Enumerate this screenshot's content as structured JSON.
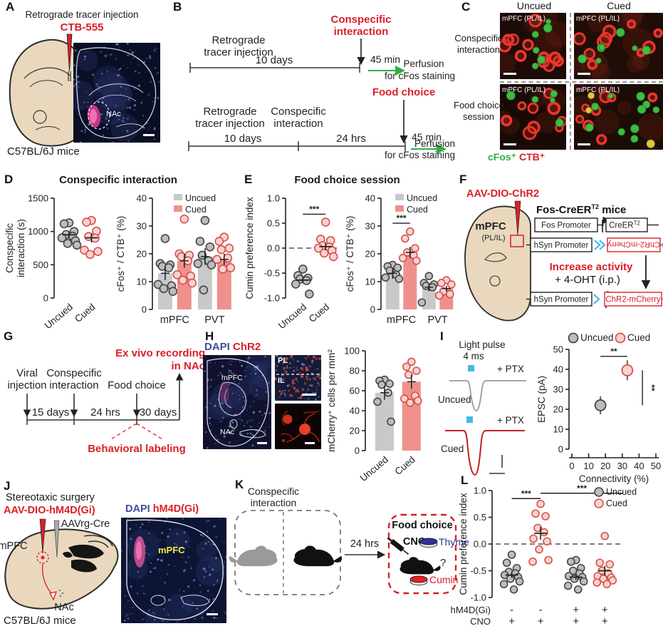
{
  "colors": {
    "red": "#d92027",
    "pink_bar": "#f0908a",
    "gray_bar": "#c9c9c9",
    "gray_dot": "#bdbdbd",
    "gray_dot_stroke": "#454545",
    "red_dot_fill": "#f8d2cf",
    "red_dot_stroke": "#d4504b",
    "green": "#2fae4a",
    "blue_text": "#3b4fa0",
    "cyan": "#45b7e6",
    "thyme_blue": "#2f2f9e",
    "beige": "#e9d8bd"
  },
  "panels": {
    "A": {
      "label": "A",
      "title": "Retrograde tracer injection",
      "tracer": "CTB-555",
      "region": "NAc",
      "mouse_line": "C57BL/6J mice"
    },
    "B": {
      "label": "B",
      "top": {
        "pre1": "Retrograde",
        "pre2": "tracer injection",
        "dur": "10 days",
        "ev1": "Conspecific",
        "ev2": "interaction",
        "delay": "45 min",
        "out1": "Perfusion",
        "out2": "for cFos staining"
      },
      "bot": {
        "pre1": "Retrograde",
        "pre2": "tracer injection",
        "mid1": "Conspecific",
        "mid2": "interaction",
        "dur1": "10 days",
        "dur2": "24 hrs",
        "ev": "Food choice",
        "delay": "45 min",
        "out1": "Perfusion",
        "out2": "for cFos staining"
      }
    },
    "C": {
      "label": "C",
      "col1": "Uncued",
      "col2": "Cued",
      "row1a": "Conspecific",
      "row1b": "interaction",
      "row2a": "Food choice",
      "row2b": "session",
      "img_label": "mPFC (PL/IL)",
      "leg_green": "cFos⁺",
      "leg_red": "CTB⁺"
    },
    "D": {
      "label": "D",
      "title": "Conspecific interaction"
    },
    "E": {
      "label": "E",
      "title": "Food choice session"
    },
    "F": {
      "label": "F",
      "virus": "AAV-DIO-ChR2",
      "region": "mPFC",
      "region_sub": "(PL/IL)",
      "mice": "Fos-CreER",
      "mice_sup": "T2",
      "mice_tail": " mice",
      "fos_prom": "Fos Promoter",
      "creer": "CreER",
      "creer_sup": "T2",
      "hsyn": "hSyn Promoter",
      "chr2_inv": "ChR2-mCherry",
      "increase": "Increase activity",
      "oht": "+ 4-OHT (i.p.)",
      "hsyn2": "hSyn Promoter",
      "chr2": "ChR2-mCherry"
    },
    "G": {
      "label": "G",
      "s1a": "Viral",
      "s1b": "injection",
      "s2a": "Conspecific",
      "s2b": "interaction",
      "s3": "Food choice",
      "d1": "15 days",
      "d2": "24 hrs",
      "d3": "30 days",
      "out1": "Ex vivo recording",
      "out2": "in NAc",
      "note": "Behavioral labeling"
    },
    "H": {
      "label": "H",
      "stain_blue": "DAPI",
      "stain_red": "ChR2",
      "mpfc": "mPFC",
      "nac": "NAc",
      "pl": "PL",
      "il": "IL"
    },
    "I": {
      "label": "I",
      "lp1": "Light pulse",
      "lp2": "4 ms",
      "ptx": "+ PTX",
      "t1": "Uncued",
      "t2": "Cued"
    },
    "J": {
      "label": "J",
      "surgery": "Stereotaxic surgery",
      "virus": "AAV-DIO-hM4D(Gi)",
      "virus2": "AAVrg-Cre",
      "mpfc": "mPFC",
      "nac": "NAc",
      "mouse_line": "C57BL/6J mice",
      "stain_blue": "DAPI",
      "stain_red": "hM4D(Gi)",
      "img_region": "mPFC"
    },
    "K": {
      "label": "K",
      "b1a": "Conspecific",
      "b1b": "interaction",
      "delay": "24 hrs",
      "b2_title": "Food choice",
      "cno": "CNO",
      "q": "?",
      "thyme": "Thyme",
      "cumin": "Cumin"
    },
    "L": {
      "label": "L"
    }
  },
  "chart_data": [
    {
      "id": "D-left",
      "type": "strip",
      "ylabel_lines": [
        "Conspecific",
        "interaction (s)"
      ],
      "ylim": [
        0,
        1500
      ],
      "yticks": [
        0,
        500,
        1000,
        1500
      ],
      "rotate_labels": true,
      "groups": [
        {
          "label": "Uncued",
          "color": "gray",
          "values": [
            1130,
            1115,
            1000,
            955,
            930,
            905,
            860,
            820,
            795
          ],
          "mean": 950,
          "err": 45
        },
        {
          "label": "Cued",
          "color": "red",
          "values": [
            1165,
            1140,
            1005,
            925,
            900,
            720,
            700,
            655
          ],
          "mean": 905,
          "err": 70
        }
      ]
    },
    {
      "id": "D-right",
      "type": "strip",
      "ylabel_lines": [
        "cFos⁺ / CTB⁺ (%)"
      ],
      "ylim": [
        0,
        40
      ],
      "yticks": [
        0,
        10,
        20,
        30,
        40
      ],
      "cats": [
        "mPFC",
        "PVT"
      ],
      "legend": {
        "shape": "rect",
        "items": [
          {
            "label": "Uncued",
            "color": "gray"
          },
          {
            "label": "Cued",
            "color": "red"
          }
        ]
      },
      "groups": [
        {
          "color": "gray",
          "bar": 13,
          "err": 2.5,
          "values": [
            25.5,
            16.5,
            16,
            15.5,
            15,
            9,
            8.5,
            7.5,
            6.5
          ]
        },
        {
          "color": "red",
          "bar": 17.5,
          "err": 2.5,
          "values": [
            32.5,
            20,
            19.5,
            19,
            17.5,
            12.5,
            12,
            10.5,
            9.5
          ]
        },
        {
          "color": "gray",
          "bar": 19,
          "err": 3,
          "values": [
            32,
            24.5,
            22.5,
            19.5,
            17.5,
            16.5,
            16,
            7
          ]
        },
        {
          "color": "red",
          "bar": 18,
          "err": 2,
          "values": [
            26,
            24.5,
            22,
            21.5,
            18.5,
            18,
            15,
            14.5
          ]
        }
      ]
    },
    {
      "id": "E-left",
      "type": "strip",
      "ylabel_lines": [
        "Cumin preference index"
      ],
      "ylim": [
        -1,
        1
      ],
      "yticks": [
        1,
        0.5,
        0,
        -0.5,
        -1
      ],
      "ytick_labels": [
        "1.0",
        "0.5",
        "0.0",
        "-0.5",
        "-1.0"
      ],
      "zero_dash": true,
      "rotate_labels": true,
      "sig": [
        {
          "from": 0,
          "to": 1,
          "y": 0.68,
          "label": "***"
        }
      ],
      "groups": [
        {
          "label": "Uncued",
          "color": "gray",
          "values": [
            -0.42,
            -0.55,
            -0.6,
            -0.62,
            -0.65,
            -0.72,
            -0.92
          ],
          "mean": -0.64,
          "err": 0.06
        },
        {
          "label": "Cued",
          "color": "red",
          "values": [
            0.52,
            0.18,
            0.15,
            0.05,
            0.02,
            0,
            -0.05,
            -0.1,
            -0.17
          ],
          "mean": 0.03,
          "err": 0.07
        }
      ]
    },
    {
      "id": "E-right",
      "type": "strip",
      "ylabel_lines": [
        "cFos⁺ / CTB⁺ (%)"
      ],
      "ylim": [
        0,
        40
      ],
      "yticks": [
        0,
        10,
        20,
        30,
        40
      ],
      "cats": [
        "mPFC",
        "PVT"
      ],
      "legend": {
        "shape": "rect",
        "items": [
          {
            "label": "Uncued",
            "color": "gray"
          },
          {
            "label": "Cued",
            "color": "red"
          }
        ]
      },
      "sig": [
        {
          "from": 0,
          "to": 1,
          "y": 31,
          "label": "***"
        }
      ],
      "groups": [
        {
          "color": "gray",
          "bar": 13,
          "err": 2,
          "values": [
            16,
            15.5,
            15,
            14,
            12.5,
            11.5,
            11
          ]
        },
        {
          "color": "red",
          "bar": 20.5,
          "err": 2,
          "values": [
            28,
            25.5,
            22,
            20.5,
            19.5,
            18.5,
            17.5
          ]
        },
        {
          "color": "gray",
          "bar": 8,
          "err": 1.5,
          "values": [
            12,
            9.5,
            9,
            8.5,
            8,
            2.5
          ]
        },
        {
          "color": "red",
          "bar": 7.5,
          "err": 1,
          "values": [
            10.5,
            9.5,
            9,
            6.5,
            5.5,
            5
          ]
        }
      ]
    },
    {
      "id": "H-bar",
      "type": "strip",
      "ylabel_lines": [
        "mCherry⁺ cells per mm²"
      ],
      "ylim": [
        0,
        100
      ],
      "yticks": [
        0,
        20,
        40,
        60,
        80,
        100
      ],
      "rotate_labels": true,
      "groups": [
        {
          "label": "Uncued",
          "color": "gray",
          "bar": 58,
          "err": 7,
          "values": [
            71,
            70,
            67,
            66,
            58,
            49,
            29
          ]
        },
        {
          "label": "Cued",
          "color": "red",
          "bar": 69,
          "err": 7,
          "values": [
            89,
            84,
            80,
            76,
            55,
            52,
            50,
            48
          ]
        }
      ]
    },
    {
      "id": "I-scatter",
      "type": "xy",
      "xlabel": "Connectivity (%)",
      "ylabel": "EPSC (pA)",
      "xlim": [
        0,
        50
      ],
      "ylim": [
        0,
        50
      ],
      "xticks": [
        0,
        10,
        20,
        30,
        40,
        50
      ],
      "yticks": [
        0,
        10,
        20,
        30,
        40,
        50
      ],
      "legend": {
        "shape": "circle",
        "items": [
          {
            "label": "Uncued",
            "color": "gray"
          },
          {
            "label": "Cued",
            "color": "red"
          }
        ]
      },
      "points": [
        {
          "label": "Uncued",
          "color": "gray",
          "x": 17,
          "y": 22,
          "xerr": 3.5,
          "yerr": 4.5
        },
        {
          "label": "Cued",
          "color": "red",
          "x": 33,
          "y": 39.5,
          "xerr": 3,
          "yerr": 5
        }
      ],
      "sig": [
        {
          "type": "h",
          "x1": 17,
          "x2": 33,
          "y": 46.5,
          "label": "**"
        },
        {
          "type": "v",
          "x": 42,
          "y1": 22,
          "y2": 39.5,
          "label": "**"
        }
      ]
    },
    {
      "id": "L-strip",
      "type": "strip",
      "ylabel_lines": [
        "Cumin preference index"
      ],
      "ylim": [
        -1,
        1
      ],
      "yticks": [
        1,
        0.5,
        0,
        -0.5,
        -1
      ],
      "ytick_labels": [
        "1.0",
        "0.5",
        "0.0",
        "-0.5",
        "-1.0"
      ],
      "zero_dash": true,
      "legend": {
        "shape": "circle",
        "items": [
          {
            "label": "Uncued",
            "color": "gray"
          },
          {
            "label": "Cued",
            "color": "red"
          }
        ]
      },
      "sig": [
        {
          "from": 0,
          "to": 1,
          "y": 0.85,
          "label": "***"
        },
        {
          "from": 1,
          "to": 3,
          "x2f": 1.0,
          "y": 0.95,
          "label": "***"
        }
      ],
      "groups": [
        {
          "color": "gray",
          "values": [
            -0.2,
            -0.35,
            -0.45,
            -0.52,
            -0.55,
            -0.58,
            -0.62,
            -0.65,
            -0.7,
            -0.75,
            -0.85
          ],
          "mean": -0.58,
          "err": 0.05
        },
        {
          "color": "red",
          "values": [
            0.75,
            0.57,
            0.52,
            0.3,
            0.22,
            0.1,
            0.05,
            -0.1,
            -0.3,
            -0.33
          ],
          "mean": 0.2,
          "err": 0.12
        },
        {
          "color": "gray",
          "values": [
            -0.3,
            -0.33,
            -0.45,
            -0.5,
            -0.55,
            -0.6,
            -0.62,
            -0.65,
            -0.7,
            -0.78,
            -0.85
          ],
          "mean": -0.62,
          "err": 0.05
        },
        {
          "color": "red",
          "values": [
            0.15,
            -0.35,
            -0.38,
            -0.5,
            -0.55,
            -0.6,
            -0.63,
            -0.65,
            -0.68,
            -0.72,
            -0.75
          ],
          "mean": -0.5,
          "err": 0.09
        }
      ],
      "rows": [
        {
          "label": "hM4D(Gi)",
          "values": [
            "-",
            "-",
            "+",
            "+"
          ]
        },
        {
          "label": "CNO",
          "values": [
            "+",
            "+",
            "+",
            "+"
          ]
        }
      ]
    }
  ]
}
